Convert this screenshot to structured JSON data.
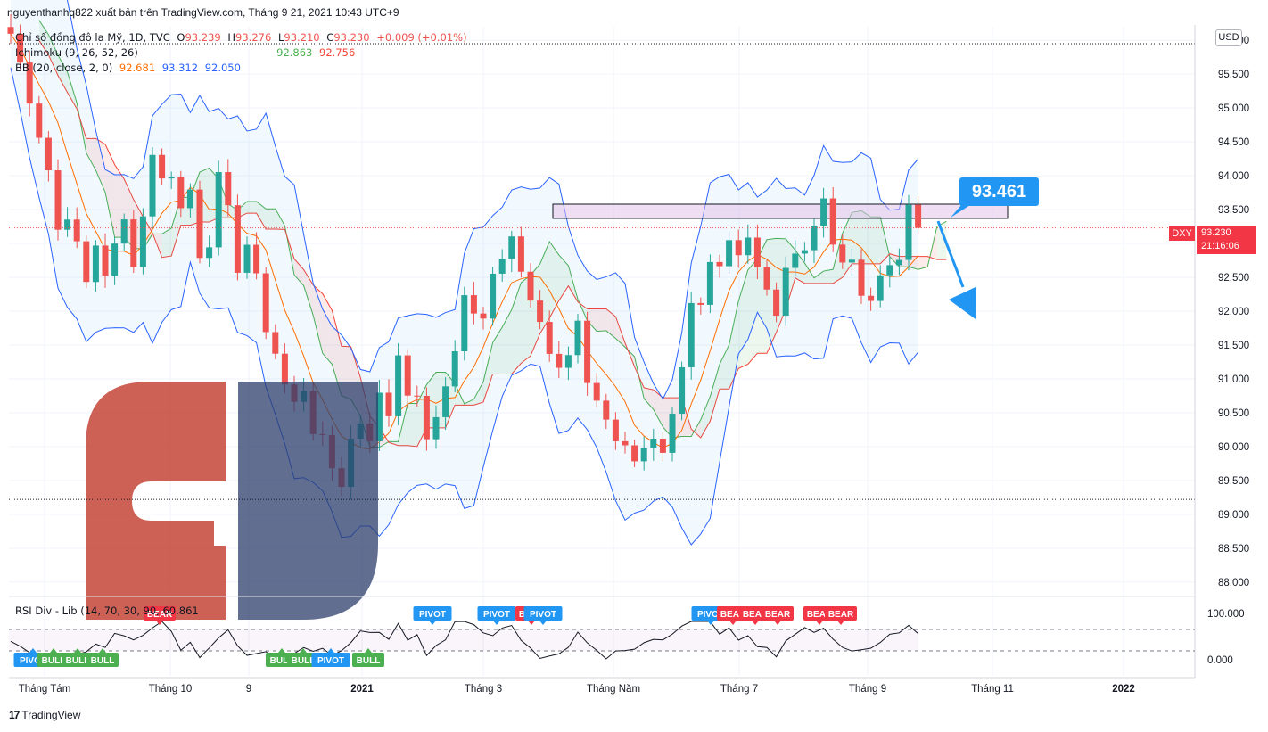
{
  "header": {
    "text": "nguyenthanhq822 xuất bản trên TradingView.com, Tháng 9 21, 2021 10:43 UTC+9"
  },
  "legend": {
    "main": {
      "label": "Chỉ số đồng đô la Mỹ, 1D, TVC",
      "o_label": "O",
      "o": "93.239",
      "h_label": "H",
      "h": "93.276",
      "l_label": "L",
      "l": "93.210",
      "c_label": "C",
      "c": "93.230",
      "change": "+0.009 (+0.01%)"
    },
    "ichimoku": {
      "label": "Ichimoku (9, 26, 52, 26)",
      "v1": "92.863",
      "v2": "92.756"
    },
    "bb": {
      "label": "BB (20, close, 2, 0)",
      "v1": "92.681",
      "v2": "93.312",
      "v3": "92.050"
    }
  },
  "currency_button": "USD",
  "price_tag": {
    "symbol": "DXY",
    "price": "93.230",
    "countdown": "21:16:06"
  },
  "callout": {
    "text": "93.461"
  },
  "rsi": {
    "legend": "RSI Div - Lib (14, 70, 30, 90, 60.861"
  },
  "branding": {
    "logo_mark": "17",
    "text": "TradingView"
  },
  "colors": {
    "up": "#26a69a",
    "down": "#ef5350",
    "bb": "#2962ff",
    "basis": "#ff6d00",
    "kumo_bull": "#4caf50",
    "kumo_bear": "#f44336",
    "accent": "#2196f3",
    "logo_red": "#c0392b",
    "logo_navy": "#2c3e6b"
  },
  "chart_data": {
    "type": "candlestick",
    "symbol": "DXY",
    "price_axis": {
      "ticks": [
        "96.000",
        "95.500",
        "95.000",
        "94.500",
        "94.000",
        "93.500",
        "93.000",
        "92.500",
        "92.000",
        "91.500",
        "91.000",
        "90.500",
        "90.000",
        "89.500",
        "89.000",
        "88.500",
        "88.000"
      ],
      "range": [
        87.8,
        96.2
      ]
    },
    "time_axis": {
      "ticks": [
        "Tháng Tám",
        "Tháng 10",
        "9",
        "2021",
        "Tháng 3",
        "Tháng Năm",
        "Tháng 7",
        "Tháng 9",
        "Tháng 11",
        "2022"
      ]
    },
    "rsi_axis": {
      "ticks": [
        "100.000",
        "0.000"
      ]
    },
    "close_path": [
      [
        0,
        96.1
      ],
      [
        2,
        95.2
      ],
      [
        4,
        94.1
      ],
      [
        5,
        93.2
      ],
      [
        6,
        93.5
      ],
      [
        7,
        92.9
      ],
      [
        8,
        92.4
      ],
      [
        9,
        93.0
      ],
      [
        10,
        92.6
      ],
      [
        11,
        92.9
      ],
      [
        12,
        93.3
      ],
      [
        13,
        92.8
      ],
      [
        14,
        93.4
      ],
      [
        15,
        94.4
      ],
      [
        16,
        93.9
      ],
      [
        17,
        94.1
      ],
      [
        18,
        93.5
      ],
      [
        19,
        93.8
      ],
      [
        20,
        92.9
      ],
      [
        21,
        93.1
      ],
      [
        22,
        93.9
      ],
      [
        23,
        93.4
      ],
      [
        24,
        92.7
      ],
      [
        25,
        93.0
      ],
      [
        26,
        92.4
      ],
      [
        27,
        91.8
      ],
      [
        28,
        91.4
      ],
      [
        29,
        90.9
      ],
      [
        30,
        90.6
      ],
      [
        31,
        90.9
      ],
      [
        32,
        90.3
      ],
      [
        33,
        90.0
      ],
      [
        34,
        89.7
      ],
      [
        35,
        89.5
      ],
      [
        36,
        90.1
      ],
      [
        37,
        90.4
      ],
      [
        38,
        90.2
      ],
      [
        39,
        90.7
      ],
      [
        40,
        90.5
      ],
      [
        41,
        91.4
      ],
      [
        42,
        90.9
      ],
      [
        43,
        90.6
      ],
      [
        44,
        90.2
      ],
      [
        45,
        90.3
      ],
      [
        46,
        90.9
      ],
      [
        47,
        91.5
      ],
      [
        48,
        92.2
      ],
      [
        49,
        92.0
      ],
      [
        50,
        91.8
      ],
      [
        51,
        92.5
      ],
      [
        52,
        92.9
      ],
      [
        53,
        93.2
      ],
      [
        54,
        92.6
      ],
      [
        55,
        92.3
      ],
      [
        56,
        92.0
      ],
      [
        57,
        91.4
      ],
      [
        58,
        91.1
      ],
      [
        59,
        91.3
      ],
      [
        60,
        91.7
      ],
      [
        61,
        91.0
      ],
      [
        62,
        90.7
      ],
      [
        63,
        90.4
      ],
      [
        64,
        90.1
      ],
      [
        65,
        89.9
      ],
      [
        66,
        89.8
      ],
      [
        67,
        90.0
      ],
      [
        68,
        90.2
      ],
      [
        69,
        90.0
      ],
      [
        70,
        90.4
      ],
      [
        71,
        91.3
      ],
      [
        72,
        92.2
      ],
      [
        73,
        92.0
      ],
      [
        74,
        92.6
      ],
      [
        75,
        92.5
      ],
      [
        76,
        92.9
      ],
      [
        77,
        92.7
      ],
      [
        78,
        93.0
      ],
      [
        79,
        92.6
      ],
      [
        80,
        92.3
      ],
      [
        81,
        92.1
      ],
      [
        82,
        92.7
      ],
      [
        83,
        92.9
      ],
      [
        84,
        93.0
      ],
      [
        85,
        93.3
      ],
      [
        86,
        93.6
      ],
      [
        87,
        92.9
      ],
      [
        88,
        92.8
      ],
      [
        89,
        92.6
      ],
      [
        90,
        92.4
      ],
      [
        91,
        92.2
      ],
      [
        92,
        92.5
      ],
      [
        93,
        92.7
      ],
      [
        94,
        92.9
      ],
      [
        95,
        93.4
      ],
      [
        96,
        93.23
      ]
    ],
    "bollinger": {
      "period": 20,
      "stdev": 2,
      "upper": "93.312",
      "basis": "92.681",
      "lower": "92.050"
    },
    "ichimoku": {
      "params": [
        9,
        26,
        52,
        26
      ],
      "values": [
        "92.863",
        "92.756"
      ]
    },
    "resistance_zone": [
      93.37,
      93.58
    ],
    "dotted_lines": [
      93.23,
      89.22,
      95.95
    ],
    "annotation": {
      "value": "93.461",
      "arrow": "down"
    },
    "rsi_signals": [
      {
        "label": "PIVOT",
        "pos": "low",
        "x": 37
      },
      {
        "label": "BULL",
        "pos": "low",
        "x": 60
      },
      {
        "label": "BULL",
        "pos": "low",
        "x": 87
      },
      {
        "label": "BULL",
        "pos": "low",
        "x": 115
      },
      {
        "label": "BEAR",
        "pos": "high",
        "x": 179
      },
      {
        "label": "BULL",
        "pos": "low",
        "x": 316
      },
      {
        "label": "BULL",
        "pos": "low",
        "x": 340
      },
      {
        "label": "PIVOT",
        "pos": "low",
        "x": 371
      },
      {
        "label": "BULL",
        "pos": "low",
        "x": 413
      },
      {
        "label": "PIVOT",
        "pos": "high",
        "x": 485
      },
      {
        "label": "PIVOT",
        "pos": "high",
        "x": 557
      },
      {
        "label": "BEAR",
        "pos": "high",
        "x": 596
      },
      {
        "label": "PIVOT",
        "pos": "high",
        "x": 609
      },
      {
        "label": "PIVOT",
        "pos": "high",
        "x": 797
      },
      {
        "label": "BEAR",
        "pos": "high",
        "x": 822
      },
      {
        "label": "BEAR",
        "pos": "high",
        "x": 847
      },
      {
        "label": "BEAR",
        "pos": "high",
        "x": 872
      },
      {
        "label": "BEAR",
        "pos": "high",
        "x": 919
      },
      {
        "label": "BEAR",
        "pos": "high",
        "x": 943
      }
    ]
  }
}
